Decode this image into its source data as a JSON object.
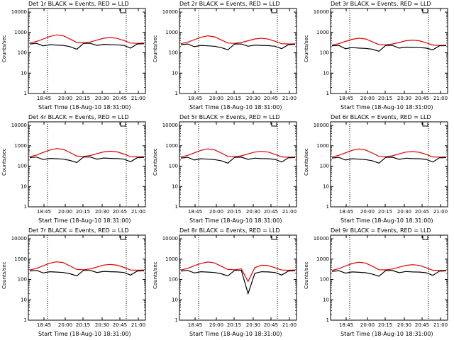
{
  "colors": {
    "events": "#000000",
    "lld": "#e00000"
  },
  "chart_data": [
    {
      "type": "line",
      "title": "Det 1r  BLACK = Events, RED = LLD",
      "ylabel": "Counts/sec",
      "xlabel": "Start Time (18-Aug-10 18:31:00)",
      "x_ticks": [
        "18:45",
        "20:00",
        "20:15",
        "20:30",
        "20:45",
        "21:00"
      ],
      "y_ticks": [
        "1",
        "10",
        "100",
        "1000",
        "10000"
      ],
      "yscale": "log",
      "ylim": [
        1,
        15000
      ],
      "series": [
        {
          "color": "red",
          "values": [
            300,
            360,
            480,
            640,
            760,
            680,
            470,
            320,
            310,
            340,
            420,
            520,
            560,
            510,
            400,
            300,
            290,
            300
          ]
        },
        {
          "color": "black",
          "values": [
            270,
            290,
            220,
            250,
            240,
            230,
            200,
            150,
            290,
            290,
            230,
            260,
            250,
            245,
            230,
            170,
            270,
            280
          ]
        }
      ]
    },
    {
      "type": "line",
      "title": "Det 2r  BLACK = Events, RED = LLD",
      "ylabel": "Counts/sec",
      "xlabel": "Start Time (18-Aug-10 18:31:00)",
      "x_ticks": [
        "18:45",
        "20:00",
        "20:15",
        "20:30",
        "20:45",
        "21:00"
      ],
      "y_ticks": [
        "1",
        "10",
        "100",
        "1000",
        "10000"
      ],
      "yscale": "log",
      "ylim": [
        1,
        15000
      ],
      "series": [
        {
          "color": "red",
          "values": [
            280,
            330,
            440,
            580,
            680,
            610,
            430,
            300,
            290,
            320,
            390,
            480,
            520,
            470,
            370,
            280,
            270,
            275
          ]
        },
        {
          "color": "black",
          "values": [
            250,
            270,
            200,
            230,
            220,
            210,
            180,
            140,
            270,
            270,
            210,
            240,
            230,
            225,
            210,
            160,
            250,
            260
          ]
        }
      ]
    },
    {
      "type": "line",
      "title": "Det 3r  BLACK = Events, RED = LLD",
      "ylabel": "Counts/sec",
      "xlabel": "Start Time (18-Aug-10 18:31:00)",
      "x_ticks": [
        "18:45",
        "20:00",
        "20:15",
        "20:30",
        "20:45",
        "21:00"
      ],
      "y_ticks": [
        "1",
        "10",
        "100",
        "1000",
        "10000"
      ],
      "yscale": "log",
      "ylim": [
        1,
        15000
      ],
      "series": [
        {
          "color": "red",
          "values": [
            240,
            280,
            360,
            460,
            520,
            480,
            350,
            250,
            245,
            270,
            320,
            390,
            420,
            390,
            310,
            240,
            230,
            235
          ]
        },
        {
          "color": "black",
          "values": [
            220,
            230,
            160,
            180,
            170,
            165,
            150,
            120,
            230,
            230,
            170,
            190,
            185,
            180,
            170,
            140,
            220,
            225
          ]
        }
      ]
    },
    {
      "type": "line",
      "title": "Det 4r  BLACK = Events, RED = LLD",
      "ylabel": "Counts/sec",
      "xlabel": "Start Time (18-Aug-10 18:31:00)",
      "x_ticks": [
        "18:45",
        "20:00",
        "20:15",
        "20:30",
        "20:45",
        "21:00"
      ],
      "y_ticks": [
        "1",
        "10",
        "100",
        "1000",
        "10000"
      ],
      "yscale": "log",
      "ylim": [
        1,
        15000
      ],
      "series": [
        {
          "color": "red",
          "values": [
            290,
            350,
            470,
            620,
            730,
            660,
            460,
            310,
            300,
            330,
            410,
            500,
            540,
            500,
            390,
            290,
            285,
            290
          ]
        },
        {
          "color": "black",
          "values": [
            260,
            280,
            210,
            240,
            230,
            220,
            190,
            150,
            280,
            280,
            220,
            250,
            240,
            235,
            220,
            165,
            260,
            270
          ]
        }
      ]
    },
    {
      "type": "line",
      "title": "Det 5r  BLACK = Events, RED = LLD",
      "ylabel": "Counts/sec",
      "xlabel": "Start Time (18-Aug-10 18:31:00)",
      "x_ticks": [
        "18:45",
        "20:00",
        "20:15",
        "20:30",
        "20:45",
        "21:00"
      ],
      "y_ticks": [
        "1",
        "10",
        "100",
        "1000",
        "10000"
      ],
      "yscale": "log",
      "ylim": [
        1,
        15000
      ],
      "series": [
        {
          "color": "red",
          "values": [
            280,
            340,
            450,
            600,
            700,
            630,
            440,
            300,
            290,
            320,
            400,
            490,
            530,
            490,
            380,
            285,
            275,
            280
          ]
        },
        {
          "color": "black",
          "values": [
            250,
            270,
            200,
            230,
            220,
            210,
            185,
            140,
            270,
            275,
            215,
            245,
            235,
            230,
            215,
            160,
            255,
            265
          ]
        }
      ]
    },
    {
      "type": "line",
      "title": "Det 6r  BLACK = Events, RED = LLD",
      "ylabel": "Counts/sec",
      "xlabel": "Start Time (18-Aug-10 18:31:00)",
      "x_ticks": [
        "18:45",
        "20:00",
        "20:15",
        "20:30",
        "20:45",
        "21:00"
      ],
      "y_ticks": [
        "1",
        "10",
        "100",
        "1000",
        "10000"
      ],
      "yscale": "log",
      "ylim": [
        1,
        15000
      ],
      "series": [
        {
          "color": "red",
          "values": [
            280,
            340,
            450,
            600,
            690,
            620,
            440,
            300,
            290,
            320,
            400,
            490,
            520,
            480,
            380,
            285,
            275,
            280
          ]
        },
        {
          "color": "black",
          "values": [
            250,
            270,
            200,
            230,
            220,
            210,
            185,
            140,
            270,
            275,
            215,
            245,
            235,
            230,
            215,
            160,
            255,
            265
          ]
        }
      ]
    },
    {
      "type": "line",
      "title": "Det 7r  BLACK = Events, RED = LLD",
      "ylabel": "Counts/sec",
      "xlabel": "Start Time (18-Aug-10 18:31:00)",
      "x_ticks": [
        "18:45",
        "20:00",
        "20:15",
        "20:30",
        "20:45",
        "21:00"
      ],
      "y_ticks": [
        "1",
        "10",
        "100",
        "1000",
        "10000"
      ],
      "yscale": "log",
      "ylim": [
        1,
        15000
      ],
      "series": [
        {
          "color": "red",
          "values": [
            290,
            350,
            470,
            630,
            740,
            670,
            460,
            310,
            300,
            330,
            410,
            510,
            550,
            500,
            390,
            290,
            285,
            290
          ]
        },
        {
          "color": "black",
          "values": [
            260,
            280,
            210,
            240,
            230,
            220,
            190,
            150,
            280,
            280,
            220,
            250,
            240,
            235,
            220,
            165,
            260,
            270
          ]
        }
      ]
    },
    {
      "type": "line",
      "title": "Det 8r  BLACK = Events, RED = LLD",
      "ylabel": "Counts/sec",
      "xlabel": "Start Time (18-Aug-10 18:31:00)",
      "x_ticks": [
        "18:45",
        "20:00",
        "20:15",
        "20:30",
        "20:45",
        "21:00"
      ],
      "y_ticks": [
        "1",
        "10",
        "100",
        "1000",
        "10000"
      ],
      "yscale": "log",
      "ylim": [
        1,
        15000
      ],
      "series": [
        {
          "color": "red",
          "values": [
            290,
            350,
            470,
            620,
            720,
            650,
            450,
            310,
            300,
            330,
            80,
            380,
            500,
            480,
            380,
            290,
            285,
            290
          ]
        },
        {
          "color": "black",
          "values": [
            260,
            280,
            210,
            240,
            230,
            220,
            190,
            150,
            280,
            280,
            20,
            200,
            240,
            235,
            220,
            165,
            260,
            270
          ]
        }
      ]
    },
    {
      "type": "line",
      "title": "Det 9r  BLACK = Events, RED = LLD",
      "ylabel": "Counts/sec",
      "xlabel": "Start Time (18-Aug-10 18:31:00)",
      "x_ticks": [
        "18:45",
        "20:00",
        "20:15",
        "20:30",
        "20:45",
        "21:00"
      ],
      "y_ticks": [
        "1",
        "10",
        "100",
        "1000",
        "10000"
      ],
      "yscale": "log",
      "ylim": [
        1,
        15000
      ],
      "series": [
        {
          "color": "red",
          "values": [
            280,
            340,
            460,
            610,
            700,
            640,
            450,
            300,
            295,
            325,
            400,
            495,
            530,
            490,
            380,
            285,
            275,
            280
          ]
        },
        {
          "color": "black",
          "values": [
            250,
            270,
            205,
            235,
            225,
            215,
            185,
            145,
            275,
            275,
            215,
            245,
            235,
            230,
            215,
            160,
            255,
            265
          ]
        }
      ]
    }
  ]
}
